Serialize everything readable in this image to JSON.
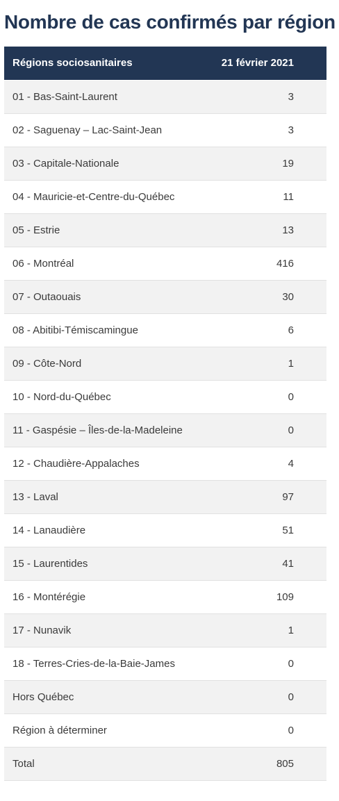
{
  "page": {
    "title": "Nombre de cas confirmés par région"
  },
  "table": {
    "headers": [
      "Régions sociosanitaires",
      "21 février 2021"
    ],
    "rows": [
      {
        "region": "01 - Bas-Saint-Laurent",
        "value": "3"
      },
      {
        "region": "02 - Saguenay – Lac-Saint-Jean",
        "value": "3"
      },
      {
        "region": "03 - Capitale-Nationale",
        "value": "19"
      },
      {
        "region": "04 - Mauricie-et-Centre-du-Québec",
        "value": "11"
      },
      {
        "region": "05 - Estrie",
        "value": "13"
      },
      {
        "region": "06 - Montréal",
        "value": "416"
      },
      {
        "region": "07 - Outaouais",
        "value": "30"
      },
      {
        "region": "08 - Abitibi-Témiscamingue",
        "value": "6"
      },
      {
        "region": "09 - Côte-Nord",
        "value": "1"
      },
      {
        "region": "10 - Nord-du-Québec",
        "value": "0"
      },
      {
        "region": "11 - Gaspésie – Îles-de-la-Madeleine",
        "value": "0"
      },
      {
        "region": "12 - Chaudière-Appalaches",
        "value": "4"
      },
      {
        "region": "13 - Laval",
        "value": "97"
      },
      {
        "region": "14 - Lanaudière",
        "value": "51"
      },
      {
        "region": "15 - Laurentides",
        "value": "41"
      },
      {
        "region": "16 - Montérégie",
        "value": "109"
      },
      {
        "region": "17 - Nunavik",
        "value": "1"
      },
      {
        "region": "18 - Terres-Cries-de-la-Baie-James",
        "value": "0"
      },
      {
        "region": "Hors Québec",
        "value": "0"
      },
      {
        "region": "Région à déterminer",
        "value": "0"
      },
      {
        "region": "Total",
        "value": "805"
      }
    ]
  },
  "colors": {
    "header_bg": "#223654",
    "title": "#223654",
    "row_alt": "#f2f2f2"
  }
}
